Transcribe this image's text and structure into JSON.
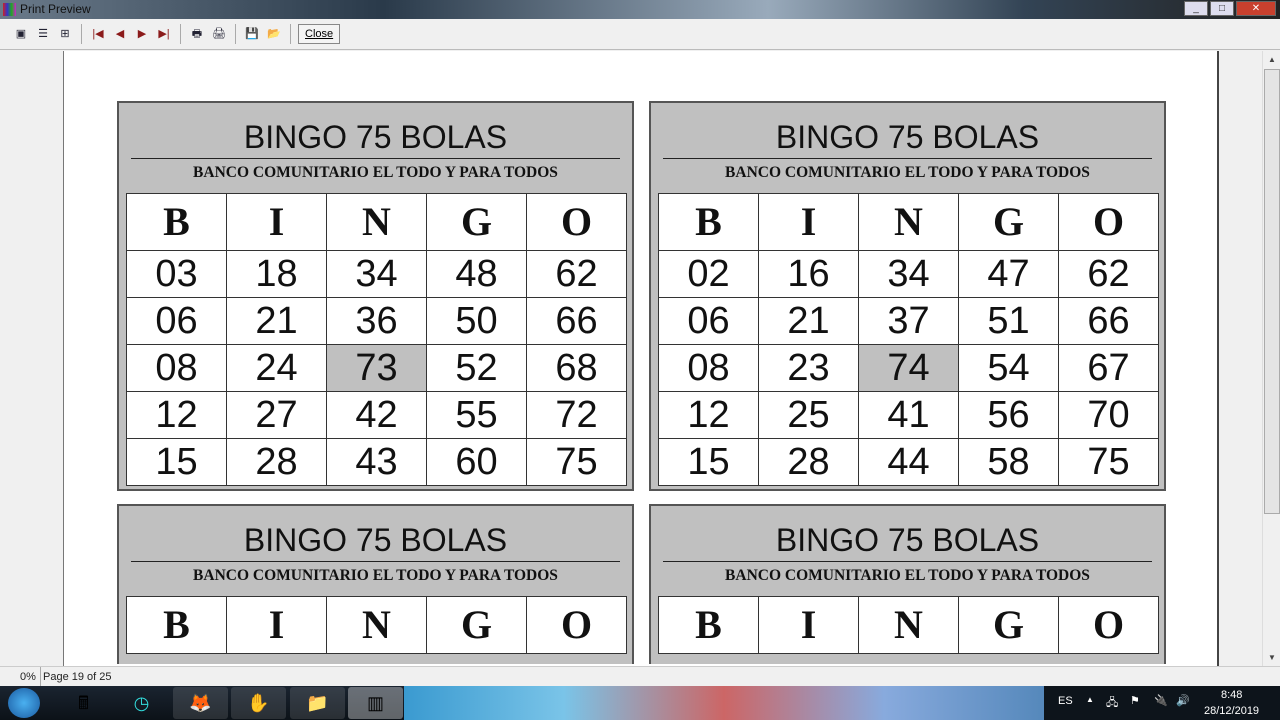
{
  "window": {
    "title": "Print Preview"
  },
  "toolbar": {
    "buttons": [
      "one-page-icon",
      "multi-page-icon",
      "page-width-icon",
      "first-page-icon",
      "previous-page-icon",
      "next-page-icon",
      "last-page-icon",
      "print-setup-icon",
      "print-icon",
      "save-icon",
      "open-icon"
    ],
    "close_label": "Close"
  },
  "cards": [
    {
      "title": "BINGO 75 BOLAS",
      "subtitle": "BANCO COMUNITARIO EL TODO Y PARA TODOS",
      "headers": [
        "B",
        "I",
        "N",
        "G",
        "O"
      ],
      "rows": [
        [
          "03",
          "18",
          "34",
          "48",
          "62"
        ],
        [
          "06",
          "21",
          "36",
          "50",
          "66"
        ],
        [
          "08",
          "24",
          "73",
          "52",
          "68"
        ],
        [
          "12",
          "27",
          "42",
          "55",
          "72"
        ],
        [
          "15",
          "28",
          "43",
          "60",
          "75"
        ]
      ]
    },
    {
      "title": "BINGO 75 BOLAS",
      "subtitle": "BANCO COMUNITARIO EL TODO Y PARA TODOS",
      "headers": [
        "B",
        "I",
        "N",
        "G",
        "O"
      ],
      "rows": [
        [
          "02",
          "16",
          "34",
          "47",
          "62"
        ],
        [
          "06",
          "21",
          "37",
          "51",
          "66"
        ],
        [
          "08",
          "23",
          "74",
          "54",
          "67"
        ],
        [
          "12",
          "25",
          "41",
          "56",
          "70"
        ],
        [
          "15",
          "28",
          "44",
          "58",
          "75"
        ]
      ]
    },
    {
      "title": "BINGO 75 BOLAS",
      "subtitle": "BANCO COMUNITARIO EL TODO Y PARA TODOS",
      "headers": [
        "B",
        "I",
        "N",
        "G",
        "O"
      ],
      "rows": []
    },
    {
      "title": "BINGO 75 BOLAS",
      "subtitle": "BANCO COMUNITARIO EL TODO Y PARA TODOS",
      "headers": [
        "B",
        "I",
        "N",
        "G",
        "O"
      ],
      "rows": []
    }
  ],
  "status": {
    "zoom": "0%",
    "page": "Page 19 of 25"
  },
  "tray": {
    "language": "ES",
    "time": "8:48",
    "date": "28/12/2019"
  },
  "colors": {
    "card_bg": "#c0c0c0",
    "free_cell": "#c0c0c0"
  }
}
